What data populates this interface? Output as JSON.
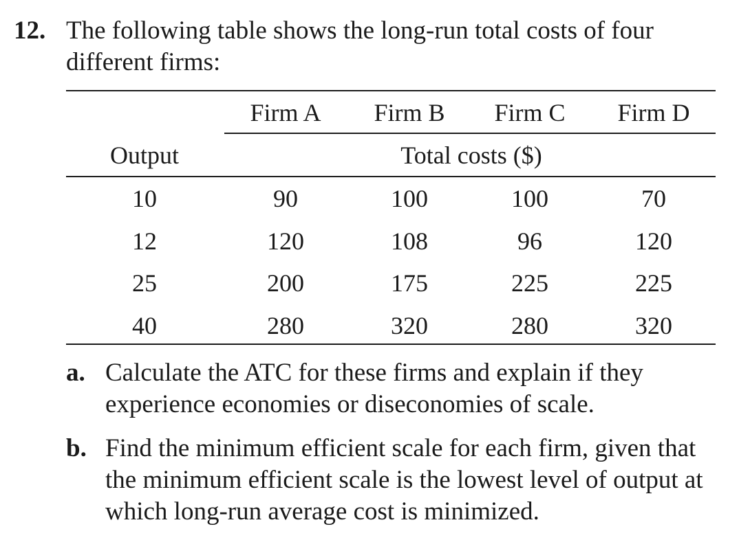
{
  "question": {
    "number": "12.",
    "text": "The following table shows the long-run total costs of four different firms:"
  },
  "table": {
    "firm_headers": [
      "Firm A",
      "Firm B",
      "Firm C",
      "Firm D"
    ],
    "output_header": "Output",
    "costs_header": "Total costs ($)",
    "rows": [
      {
        "output": "10",
        "a": "90",
        "b": "100",
        "c": "100",
        "d": "70"
      },
      {
        "output": "12",
        "a": "120",
        "b": "108",
        "c": "96",
        "d": "120"
      },
      {
        "output": "25",
        "a": "200",
        "b": "175",
        "c": "225",
        "d": "225"
      },
      {
        "output": "40",
        "a": "280",
        "b": "320",
        "c": "280",
        "d": "320"
      }
    ]
  },
  "parts": [
    {
      "label": "a.",
      "text": "Calculate the ATC for these firms and explain if they experience economies or diseconomies of scale."
    },
    {
      "label": "b.",
      "text": "Find the minimum efficient scale for each firm, given that the minimum efficient scale is the lowest level of output at which long-run average cost is minimized."
    }
  ]
}
